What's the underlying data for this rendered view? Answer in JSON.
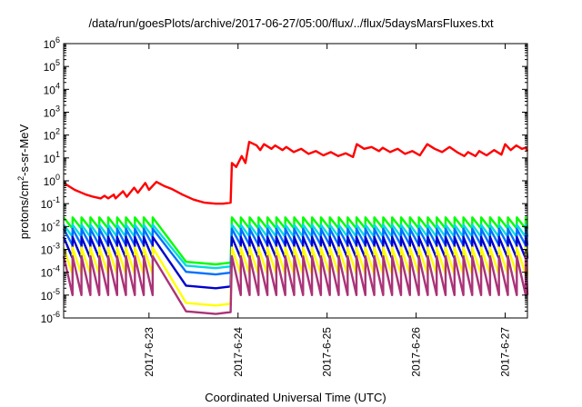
{
  "chart_data": {
    "type": "line",
    "title": "/data/run/goesPlots/archive/2017-06-27/05:00/flux/../flux/5daysMarsFluxes.txt",
    "xlabel": "Coordinated Universal Time (UTC)",
    "ylabel": {
      "pre": "protons/cm",
      "sup": "2",
      "post": "-s-sr-MeV"
    },
    "y_scale": "log",
    "ylim": [
      1e-06,
      1000000.0
    ],
    "y_ticks": [
      {
        "base": "10",
        "exp": "-6"
      },
      {
        "base": "10",
        "exp": "-5"
      },
      {
        "base": "10",
        "exp": "-4"
      },
      {
        "base": "10",
        "exp": "-3"
      },
      {
        "base": "10",
        "exp": "-2"
      },
      {
        "base": "10",
        "exp": "-1"
      },
      {
        "base": "10",
        "exp": "0"
      },
      {
        "base": "10",
        "exp": "1"
      },
      {
        "base": "10",
        "exp": "2"
      },
      {
        "base": "10",
        "exp": "3"
      },
      {
        "base": "10",
        "exp": "4"
      },
      {
        "base": "10",
        "exp": "5"
      },
      {
        "base": "10",
        "exp": "6"
      }
    ],
    "xlim": [
      "2017-06-22 01:00",
      "2017-06-27 06:00"
    ],
    "x_ticks": [
      "2017-6-23",
      "2017-6-24",
      "2017-6-25",
      "2017-6-26",
      "2017-6-27"
    ],
    "grid": false,
    "legend": "none",
    "series": [
      {
        "color": "#ff0000",
        "points": [
          [
            "2017-06-22 01:00",
            0.8
          ],
          [
            "2017-06-22 04:00",
            0.4
          ],
          [
            "2017-06-22 07:00",
            0.25
          ],
          [
            "2017-06-22 09:00",
            0.2
          ],
          [
            "2017-06-22 11:00",
            0.17
          ],
          [
            "2017-06-22 12:00",
            0.22
          ],
          [
            "2017-06-22 13:00",
            0.17
          ],
          [
            "2017-06-22 14:30",
            0.25
          ],
          [
            "2017-06-22 15:00",
            0.17
          ],
          [
            "2017-06-22 17:00",
            0.35
          ],
          [
            "2017-06-22 18:00",
            0.2
          ],
          [
            "2017-06-22 20:00",
            0.5
          ],
          [
            "2017-06-22 21:00",
            0.3
          ],
          [
            "2017-06-22 23:00",
            0.8
          ],
          [
            "2017-06-23 00:00",
            0.4
          ],
          [
            "2017-06-23 02:00",
            0.9
          ],
          [
            "2017-06-23 04:00",
            0.6
          ],
          [
            "2017-06-23 06:00",
            0.45
          ],
          [
            "2017-06-23 09:00",
            0.25
          ],
          [
            "2017-06-23 12:00",
            0.15
          ],
          [
            "2017-06-23 15:00",
            0.11
          ],
          [
            "2017-06-23 18:00",
            0.1
          ],
          [
            "2017-06-23 20:00",
            0.1
          ],
          [
            "2017-06-23 22:00",
            0.11
          ],
          [
            "2017-06-23 22:20",
            6
          ],
          [
            "2017-06-23 23:30",
            4
          ],
          [
            "2017-06-24 01:00",
            12
          ],
          [
            "2017-06-24 02:00",
            6
          ],
          [
            "2017-06-24 03:00",
            50
          ],
          [
            "2017-06-24 05:00",
            35
          ],
          [
            "2017-06-24 06:00",
            22
          ],
          [
            "2017-06-24 07:00",
            40
          ],
          [
            "2017-06-24 09:00",
            25
          ],
          [
            "2017-06-24 10:00",
            35
          ],
          [
            "2017-06-24 12:00",
            22
          ],
          [
            "2017-06-24 13:00",
            30
          ],
          [
            "2017-06-24 15:00",
            18
          ],
          [
            "2017-06-24 17:00",
            25
          ],
          [
            "2017-06-24 19:00",
            15
          ],
          [
            "2017-06-24 21:00",
            20
          ],
          [
            "2017-06-24 23:00",
            13
          ],
          [
            "2017-06-25 01:00",
            18
          ],
          [
            "2017-06-25 03:00",
            12
          ],
          [
            "2017-06-25 05:00",
            16
          ],
          [
            "2017-06-25 07:00",
            11
          ],
          [
            "2017-06-25 08:00",
            40
          ],
          [
            "2017-06-25 10:00",
            25
          ],
          [
            "2017-06-25 12:00",
            30
          ],
          [
            "2017-06-25 14:00",
            20
          ],
          [
            "2017-06-25 15:00",
            28
          ],
          [
            "2017-06-25 17:00",
            18
          ],
          [
            "2017-06-25 19:00",
            25
          ],
          [
            "2017-06-25 21:00",
            15
          ],
          [
            "2017-06-25 23:00",
            20
          ],
          [
            "2017-06-26 01:00",
            13
          ],
          [
            "2017-06-26 03:00",
            40
          ],
          [
            "2017-06-26 05:00",
            25
          ],
          [
            "2017-06-26 07:00",
            18
          ],
          [
            "2017-06-26 09:00",
            30
          ],
          [
            "2017-06-26 11:00",
            18
          ],
          [
            "2017-06-26 13:00",
            12
          ],
          [
            "2017-06-26 14:00",
            18
          ],
          [
            "2017-06-26 16:00",
            12
          ],
          [
            "2017-06-26 17:00",
            20
          ],
          [
            "2017-06-26 19:00",
            13
          ],
          [
            "2017-06-26 21:00",
            22
          ],
          [
            "2017-06-26 23:00",
            14
          ],
          [
            "2017-06-27 00:00",
            40
          ],
          [
            "2017-06-27 01:30",
            22
          ],
          [
            "2017-06-27 03:00",
            35
          ],
          [
            "2017-06-27 04:30",
            25
          ],
          [
            "2017-06-27 05:30",
            28
          ],
          [
            "2017-06-27 06:00",
            20
          ]
        ]
      },
      {
        "color": "#00ff00",
        "profile": {
          "peak": 0.025,
          "trough": 0.008,
          "dip": 0.00022
        }
      },
      {
        "color": "#00dddd",
        "profile": {
          "peak": 0.012,
          "trough": 0.0035,
          "dip": 0.00015
        }
      },
      {
        "color": "#0070ff",
        "profile": {
          "peak": 0.008,
          "trough": 0.0015,
          "dip": 8e-05
        }
      },
      {
        "color": "#0000cc",
        "profile": {
          "peak": 0.0035,
          "trough": 0.0004,
          "dip": 2e-05
        }
      },
      {
        "color": "#ffff00",
        "profile": {
          "peak": 0.0012,
          "trough": 8e-05,
          "dip": 3.5e-06
        }
      },
      {
        "color": "#aa3377",
        "profile": {
          "peak": 0.0005,
          "trough": 1e-05,
          "dip": 1.5e-06
        }
      }
    ]
  }
}
